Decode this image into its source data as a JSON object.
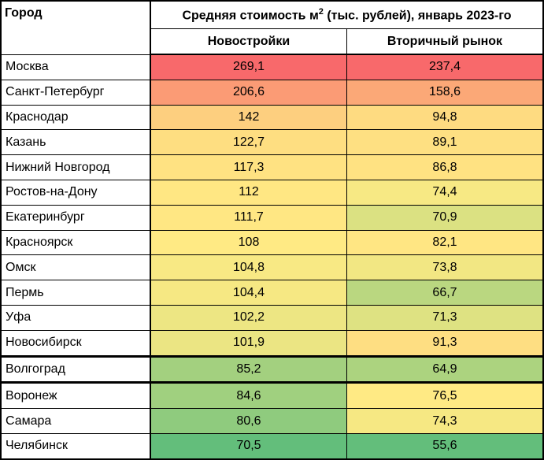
{
  "chart_data": {
    "type": "table",
    "title": "Средняя стоимость м",
    "title_sup": "2",
    "title_rest": " (тыс. рублей), январь 2023-го",
    "city_header": "Город",
    "columns": [
      "Новостройки",
      "Вторичный рынок"
    ],
    "rows": [
      {
        "city": "Москва",
        "values": [
          "269,1",
          "237,4"
        ]
      },
      {
        "city": "Санкт-Петербург",
        "values": [
          "206,6",
          "158,6"
        ]
      },
      {
        "city": "Краснодар",
        "values": [
          "142",
          "94,8"
        ]
      },
      {
        "city": "Казань",
        "values": [
          "122,7",
          "89,1"
        ]
      },
      {
        "city": "Нижний Новгород",
        "values": [
          "117,3",
          "86,8"
        ]
      },
      {
        "city": "Ростов-на-Дону",
        "values": [
          "112",
          "74,4"
        ]
      },
      {
        "city": "Екатеринбург",
        "values": [
          "111,7",
          "70,9"
        ]
      },
      {
        "city": "Красноярск",
        "values": [
          "108",
          "82,1"
        ]
      },
      {
        "city": "Омск",
        "values": [
          "104,8",
          "73,8"
        ]
      },
      {
        "city": "Пермь",
        "values": [
          "104,4",
          "66,7"
        ]
      },
      {
        "city": "Уфа",
        "values": [
          "102,2",
          "71,3"
        ]
      },
      {
        "city": "Новосибирск",
        "values": [
          "101,9",
          "91,3"
        ]
      },
      {
        "city": "Волгоград",
        "values": [
          "85,2",
          "64,9"
        ]
      },
      {
        "city": "Воронеж",
        "values": [
          "84,6",
          "76,5"
        ]
      },
      {
        "city": "Самара",
        "values": [
          "80,6",
          "74,3"
        ]
      },
      {
        "city": "Челябинск",
        "values": [
          "70,5",
          "55,6"
        ]
      }
    ],
    "color_scale": {
      "low": "#63BE7B",
      "mid": "#FFEB84",
      "high": "#F8696B"
    }
  }
}
